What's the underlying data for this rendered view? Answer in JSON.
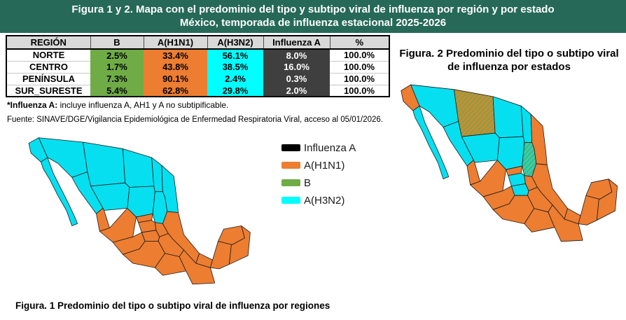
{
  "banner": {
    "line1": "Figura 1 y 2. Mapa con el predominio del tipo y subtipo viral de influenza por región y por estado",
    "line2": "México, temporada de influenza estacional 2025-2026",
    "bg_color": "#266958"
  },
  "table": {
    "headers": [
      "REGIÓN",
      "B",
      "A(H1N1)",
      "A(H3N2)",
      "Influenza A",
      "%"
    ],
    "rows": [
      {
        "region": "NORTE",
        "b": "2.5%",
        "h1n1": "33.4%",
        "h3n2": "56.1%",
        "influenza_a": "8.0%",
        "total": "100.0%"
      },
      {
        "region": "CENTRO",
        "b": "1.7%",
        "h1n1": "43.8%",
        "h3n2": "38.5%",
        "influenza_a": "16.0%",
        "total": "100.0%"
      },
      {
        "region": "PENÍNSULA",
        "b": "7.3%",
        "h1n1": "90.1%",
        "h3n2": "2.4%",
        "influenza_a": "0.3%",
        "total": "100.0%"
      },
      {
        "region": "SUR_SURESTE",
        "b": "5.4%",
        "h1n1": "62.8%",
        "h3n2": "29.8%",
        "influenza_a": "2.0%",
        "total": "100.0%"
      }
    ],
    "colors": {
      "header_bg": "#D9D9D9",
      "b": "#6FAC46",
      "h1n1": "#ED7D31",
      "h3n2": "#00FFFF",
      "influenza_a": "#3F3F3F"
    }
  },
  "footnotes": {
    "influenza_a_bold": "*Influenza A:",
    "influenza_a_rest": " incluye influenza A, AH1 y A no subtipificable.",
    "fuente": "Fuente: SINAVE/DGE/Vigilancia Epidemiológica de Enfermedad Respiratoria Viral, acceso al 05/01/2026."
  },
  "legend": {
    "items": [
      {
        "label": "Influenza A",
        "color": "#000000"
      },
      {
        "label": "A(H1N1)",
        "color": "#ED7D31"
      },
      {
        "label": "B",
        "color": "#6FAC46"
      },
      {
        "label": "A(H3N2)",
        "color": "#00FFFF"
      }
    ]
  },
  "map_colors": {
    "h3n2": "#06DFEF",
    "h1n1": "#ED7D31",
    "b_stripe": "#6FAC46"
  },
  "figure1": {
    "caption": "Figura. 1 Predominio del tipo o subtipo viral de influenza por regiones",
    "state_fill": {
      "bc": "h3n2",
      "bcs": "h3n2",
      "sonora": "h3n2",
      "chihuahua": "h3n2",
      "coahuila": "h3n2",
      "nuevoleon": "h3n2",
      "tamaulipas": "h3n2",
      "sinaloa": "h3n2",
      "durango": "h3n2",
      "zacatecas": "h3n2",
      "slp": "h3n2",
      "nayarit": "h1n1",
      "jalisco": "h1n1",
      "aguascalientes": "h1n1",
      "guanajuato": "h1n1",
      "hidalgo": "h1n1",
      "mexico": "h1n1",
      "michoacan": "h1n1",
      "veracruz": "h1n1",
      "puebla": "h1n1",
      "guerrero": "h1n1",
      "oaxaca": "h1n1",
      "chiapas": "h1n1",
      "tabasco": "h1n1",
      "campeche": "h1n1",
      "yucatan": "h1n1",
      "qroo": "h1n1"
    }
  },
  "figure2": {
    "title_line1": "Figura. 2 Predominio del tipo o subtipo viral",
    "title_line2": "de influenza por estados",
    "state_fill": {
      "bc": "h1n1",
      "bcs": "h3n2",
      "sonora": "h3n2",
      "chihuahua": "mix_b_h1n1",
      "coahuila": "h3n2",
      "nuevoleon": "h3n2",
      "tamaulipas": "h1n1",
      "sinaloa": "h3n2",
      "durango": "h3n2",
      "zacatecas": "h3n2",
      "slp": "mix_b_h3n2",
      "nayarit": "h1n1",
      "jalisco": "h1n1",
      "aguascalientes": "h1n1",
      "guanajuato": "h3n2",
      "hidalgo": "h1n1",
      "mexico": "h3n2",
      "michoacan": "h1n1",
      "veracruz": "h1n1",
      "puebla": "h1n1",
      "guerrero": "h1n1",
      "oaxaca": "h1n1",
      "chiapas": "h1n1",
      "tabasco": "h1n1",
      "campeche": "h1n1",
      "yucatan": "h1n1",
      "qroo": "h1n1"
    }
  },
  "chart_data": [
    {
      "type": "table",
      "title": "Predominio del tipo y subtipo viral de influenza por región, México 2025-2026",
      "columns": [
        "REGIÓN",
        "B",
        "A(H1N1)",
        "A(H3N2)",
        "Influenza A",
        "%"
      ],
      "rows": [
        [
          "NORTE",
          2.5,
          33.4,
          56.1,
          8.0,
          100.0
        ],
        [
          "CENTRO",
          1.7,
          43.8,
          38.5,
          16.0,
          100.0
        ],
        [
          "PENÍNSULA",
          7.3,
          90.1,
          2.4,
          0.3,
          100.0
        ],
        [
          "SUR_SURESTE",
          5.4,
          62.8,
          29.8,
          2.0,
          100.0
        ]
      ],
      "units": "percent"
    },
    {
      "type": "heatmap",
      "subtype": "choropleth-map",
      "title": "Figura. 1 Predominio del tipo o subtipo viral de influenza por regiones",
      "regions": {
        "NORTE": "A(H3N2)",
        "CENTRO": "A(H1N1)",
        "PENÍNSULA": "A(H1N1)",
        "SUR_SURESTE": "A(H1N1)"
      },
      "legend": [
        "Influenza A",
        "A(H1N1)",
        "B",
        "A(H3N2)"
      ],
      "legend_colors": [
        "#000000",
        "#ED7D31",
        "#6FAC46",
        "#00FFFF"
      ]
    },
    {
      "type": "heatmap",
      "subtype": "choropleth-map",
      "title": "Figura. 2 Predominio del tipo o subtipo viral de influenza por estados",
      "notes": "Mayoría de estados del norte A(H3N2) (cian); Baja California, Tamaulipas y centro-sur A(H1N1) (naranja); Chihuahua y San Luis Potosí con patrón rayado (mixto con B)"
    }
  ]
}
